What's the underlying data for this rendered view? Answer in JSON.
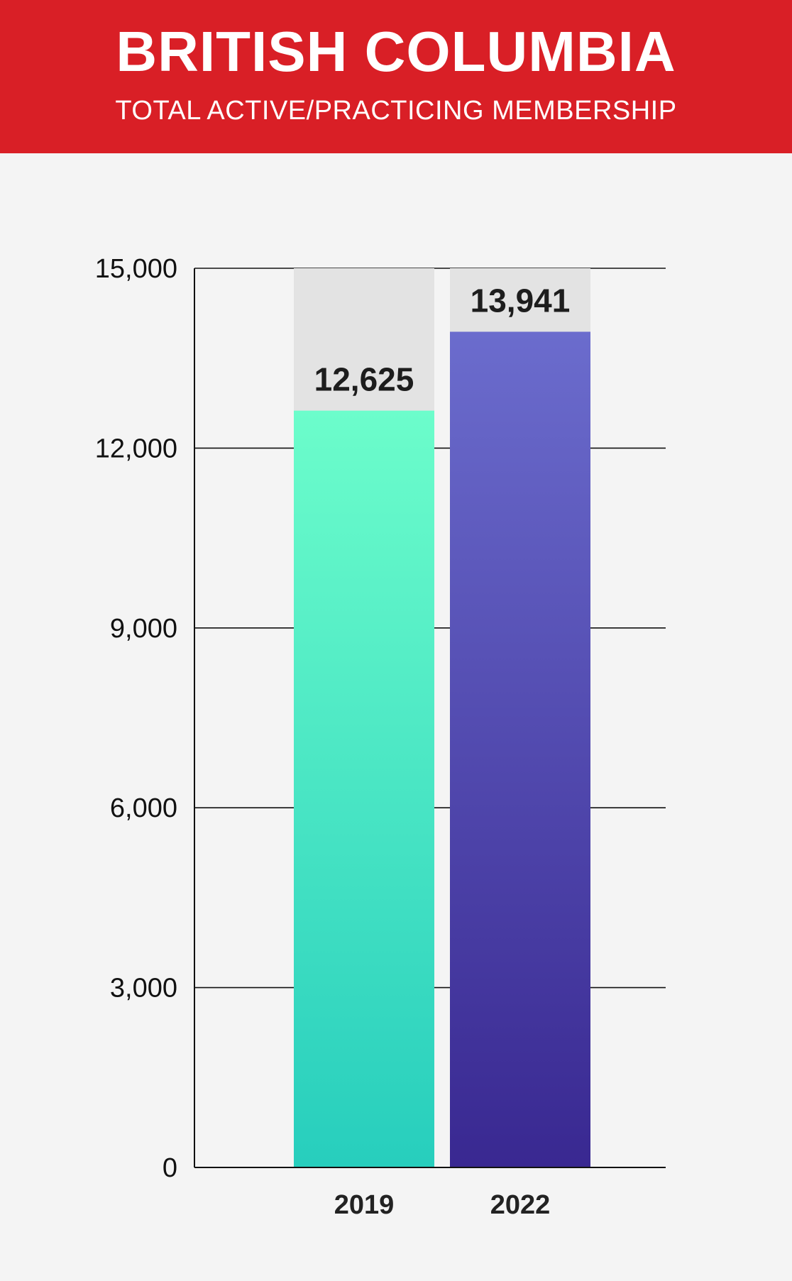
{
  "header": {
    "title": "BRITISH COLUMBIA",
    "subtitle": "TOTAL ACTIVE/PRACTICING MEMBERSHIP",
    "background_color": "#d91f26"
  },
  "chart_data": {
    "type": "bar",
    "title": "BRITISH COLUMBIA",
    "subtitle": "TOTAL ACTIVE/PRACTICING MEMBERSHIP",
    "categories": [
      "2019",
      "2022"
    ],
    "values": [
      12625,
      13941
    ],
    "value_labels": [
      "12,625",
      "13,941"
    ],
    "ylim": [
      0,
      15000
    ],
    "yticks": [
      0,
      3000,
      6000,
      9000,
      12000,
      15000
    ],
    "ytick_labels": [
      "0",
      "3,000",
      "6,000",
      "9,000",
      "12,000",
      "15,000"
    ],
    "xlabel": "",
    "ylabel": "",
    "grid": true,
    "legend": "none",
    "bar_colors": [
      {
        "top": "#6cfdcb",
        "bottom": "#27cebd"
      },
      {
        "top": "#6b6ccd",
        "bottom": "#392891"
      }
    ],
    "bar_background_color": "#e3e3e3"
  }
}
